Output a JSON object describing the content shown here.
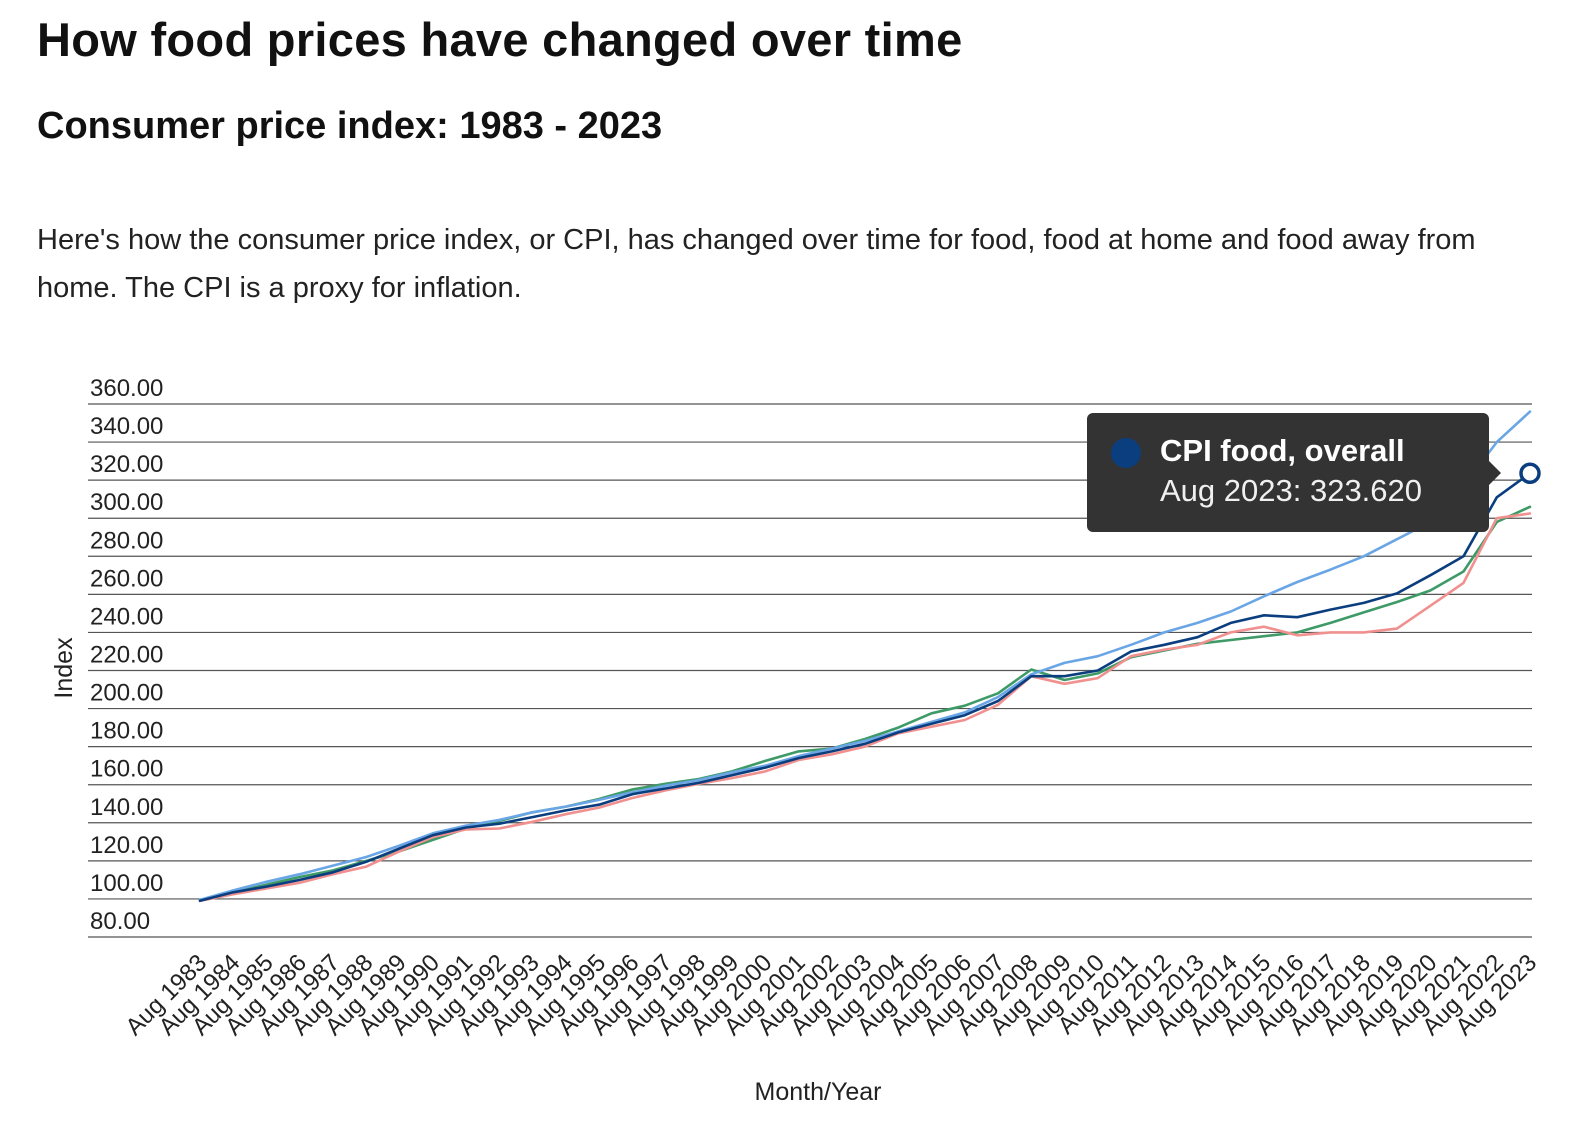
{
  "page": {
    "title": "How food prices have changed over time",
    "subtitle": "Consumer price index: 1983 - 2023",
    "description": "Here's how the consumer price index, or CPI, has changed over time for food, food at home and food away from home. The CPI is a proxy for inflation."
  },
  "tooltip": {
    "series_name": "CPI food, overall",
    "value_text": "Aug 2023: 323.620",
    "marker_color": "#0b3e7e"
  },
  "chart_data": {
    "type": "line",
    "xlabel": "Month/Year",
    "ylabel": "Index",
    "ylim": [
      80,
      360
    ],
    "y_ticks": [
      "80.00",
      "100.00",
      "120.00",
      "140.00",
      "160.00",
      "180.00",
      "200.00",
      "220.00",
      "240.00",
      "260.00",
      "280.00",
      "300.00",
      "320.00",
      "340.00",
      "360.00"
    ],
    "categories": [
      "Aug 1983",
      "Aug 1984",
      "Aug 1985",
      "Aug 1986",
      "Aug 1987",
      "Aug 1988",
      "Aug 1989",
      "Aug 1990",
      "Aug 1991",
      "Aug 1992",
      "Aug 1993",
      "Aug 1994",
      "Aug 1995",
      "Aug 1996",
      "Aug 1997",
      "Aug 1998",
      "Aug 1999",
      "Aug 2000",
      "Aug 2001",
      "Aug 2002",
      "Aug 2003",
      "Aug 2004",
      "Aug 2005",
      "Aug 2006",
      "Aug 2007",
      "Aug 2008",
      "Aug 2009",
      "Aug 2010",
      "Aug 2011",
      "Aug 2012",
      "Aug 2013",
      "Aug 2014",
      "Aug 2015",
      "Aug 2016",
      "Aug 2017",
      "Aug 2018",
      "Aug 2019",
      "Aug 2020",
      "Aug 2021",
      "Aug 2022",
      "Aug 2023"
    ],
    "grid": true,
    "series": [
      {
        "name": "CPI food, overall",
        "color": "#0b3e7e",
        "values": [
          99.0,
          103.5,
          106.5,
          110.0,
          114.0,
          119.5,
          126.5,
          133.5,
          137.5,
          139.5,
          143.0,
          146.5,
          149.5,
          155.0,
          158.0,
          161.0,
          165.0,
          169.0,
          174.0,
          177.5,
          181.5,
          187.5,
          192.0,
          196.5,
          204.0,
          217.0,
          217.0,
          220.0,
          230.0,
          233.5,
          237.5,
          245.0,
          249.0,
          248.0,
          252.0,
          255.5,
          260.5,
          270.0,
          280.0,
          311.0,
          323.62
        ]
      },
      {
        "series_color_name": "food-at-home",
        "color": "#f0908f",
        "values": [
          99.0,
          102.5,
          105.5,
          108.5,
          113.0,
          117.0,
          125.0,
          132.5,
          136.5,
          137.0,
          140.5,
          144.5,
          148.0,
          153.0,
          157.0,
          160.5,
          163.5,
          167.0,
          173.0,
          176.0,
          180.0,
          187.0,
          190.5,
          194.0,
          202.0,
          217.0,
          213.0,
          216.0,
          227.5,
          231.0,
          233.5,
          240.0,
          243.0,
          238.5,
          240.0,
          240.0,
          242.0,
          254.0,
          266.0,
          300.0,
          302.5
        ]
      },
      {
        "series_color_name": "food-away-from-home",
        "color": "#6aa6e6",
        "values": [
          99.5,
          104.5,
          109.0,
          113.0,
          117.5,
          122.0,
          128.0,
          134.5,
          138.5,
          141.5,
          145.5,
          148.5,
          152.0,
          156.0,
          159.5,
          162.5,
          166.5,
          170.0,
          175.0,
          179.0,
          183.0,
          188.0,
          193.0,
          198.0,
          206.0,
          218.0,
          224.0,
          227.5,
          233.5,
          240.0,
          245.0,
          251.0,
          259.0,
          266.5,
          273.0,
          280.0,
          289.0,
          298.0,
          317.0,
          340.0,
          356.0
        ]
      },
      {
        "series_color_name": "green-series",
        "color": "#3e9a66",
        "values": [
          99.5,
          103.5,
          107.5,
          111.5,
          115.0,
          120.0,
          125.0,
          131.0,
          137.0,
          141.0,
          145.5,
          148.5,
          152.5,
          157.5,
          160.5,
          163.0,
          167.0,
          172.5,
          177.5,
          179.0,
          184.0,
          190.0,
          197.5,
          201.5,
          208.0,
          220.5,
          215.0,
          218.5,
          227.0,
          230.5,
          234.0,
          236.0,
          238.0,
          240.0,
          245.0,
          250.5,
          256.0,
          262.0,
          272.0,
          298.0,
          306.0
        ]
      }
    ]
  }
}
